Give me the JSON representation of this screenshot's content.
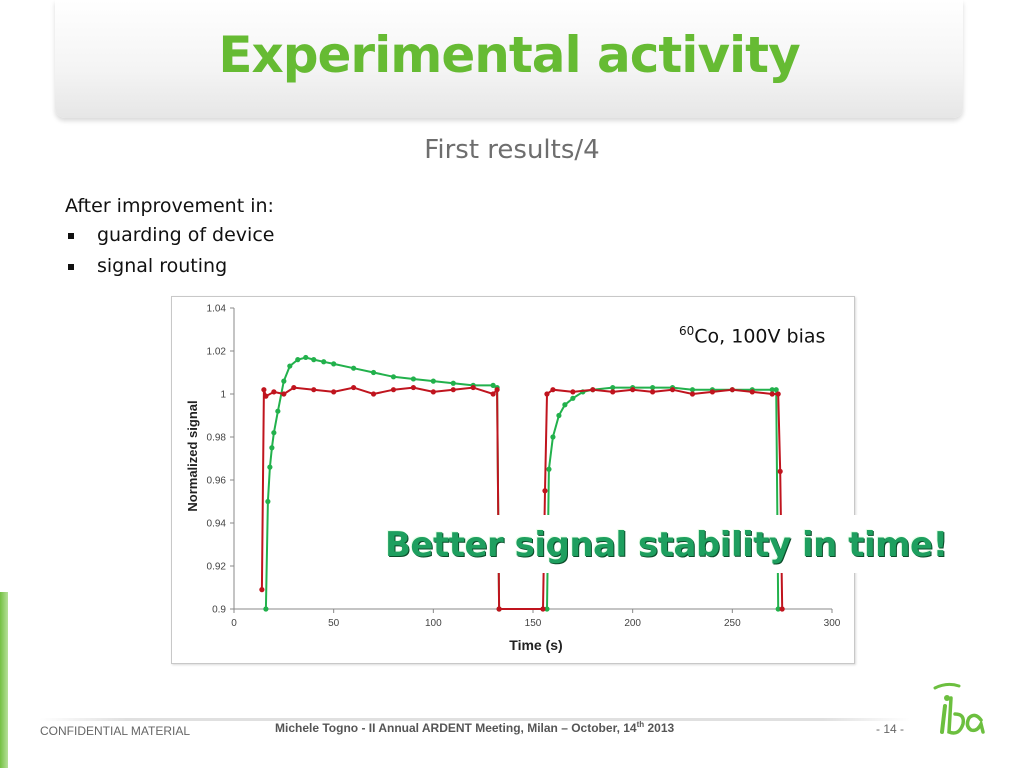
{
  "slide": {
    "title": "Experimental activity",
    "subtitle": "First results/4",
    "intro": "After improvement in:",
    "bullets": [
      "guarding of device",
      "signal routing"
    ],
    "annotation_iso": "60",
    "annotation_text": "Co, 100V bias",
    "callout": "Better signal stability in time!",
    "colors": {
      "title": "#66bb33",
      "callout": "#1e9f5f",
      "series_red": "#c0141e",
      "series_green": "#22b14c"
    }
  },
  "footer": {
    "left": "CONFIDENTIAL MATERIAL",
    "center_main": "Michele Togno - II Annual ARDENT Meeting, Milan – October, 14",
    "center_sup": "th",
    "center_year": " 2013",
    "page": "- 14 -",
    "logo_text": "iba"
  },
  "chart_data": {
    "type": "line",
    "xlabel": "Time (s)",
    "ylabel": "Normalized signal",
    "xlim": [
      0,
      300
    ],
    "ylim": [
      0.9,
      1.04
    ],
    "x_ticks": [
      "0",
      "50",
      "100",
      "150",
      "200",
      "250",
      "300"
    ],
    "y_ticks": [
      "0.9",
      "0.92",
      "0.94",
      "0.96",
      "0.98",
      "1",
      "1.02",
      "1.04"
    ],
    "grid": false,
    "series": [
      {
        "color": "#c0141e",
        "x": [
          14,
          15,
          16,
          20,
          25,
          30,
          40,
          50,
          60,
          70,
          80,
          90,
          100,
          110,
          120,
          130,
          132,
          133,
          155,
          156,
          157,
          160,
          170,
          180,
          190,
          200,
          210,
          220,
          230,
          240,
          250,
          260,
          270,
          273,
          274,
          275
        ],
        "y": [
          0.909,
          1.002,
          0.999,
          1.001,
          1.0,
          1.003,
          1.002,
          1.001,
          1.003,
          1.0,
          1.002,
          1.003,
          1.001,
          1.002,
          1.003,
          1.0,
          1.002,
          0.9,
          0.9,
          0.955,
          1.0,
          1.002,
          1.001,
          1.002,
          1.001,
          1.002,
          1.001,
          1.002,
          1.0,
          1.001,
          1.002,
          1.001,
          1.0,
          1.0,
          0.964,
          0.9
        ]
      },
      {
        "color": "#22b14c",
        "x": [
          16,
          17,
          18,
          19,
          20,
          22,
          25,
          28,
          32,
          36,
          40,
          45,
          50,
          60,
          70,
          80,
          90,
          100,
          110,
          120,
          130,
          132,
          133,
          157,
          158,
          160,
          163,
          166,
          170,
          175,
          180,
          190,
          200,
          210,
          220,
          230,
          240,
          250,
          260,
          270,
          272,
          273
        ],
        "y": [
          0.9,
          0.95,
          0.966,
          0.975,
          0.982,
          0.992,
          1.006,
          1.013,
          1.016,
          1.017,
          1.016,
          1.015,
          1.014,
          1.012,
          1.01,
          1.008,
          1.007,
          1.006,
          1.005,
          1.004,
          1.004,
          1.003,
          0.9,
          0.9,
          0.965,
          0.98,
          0.99,
          0.995,
          0.998,
          1.001,
          1.002,
          1.003,
          1.003,
          1.003,
          1.003,
          1.002,
          1.002,
          1.002,
          1.002,
          1.002,
          1.002,
          0.9
        ]
      }
    ]
  }
}
